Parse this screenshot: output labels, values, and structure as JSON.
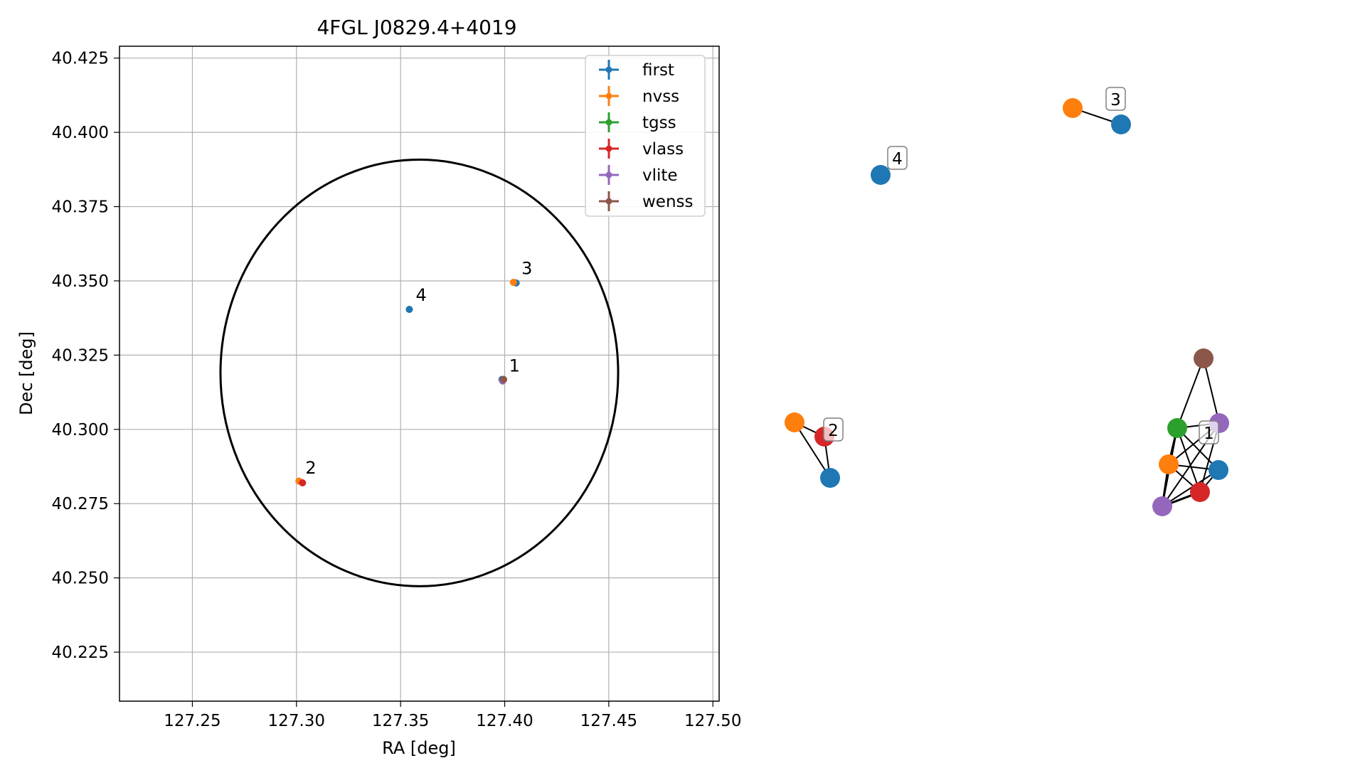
{
  "chart_data": [
    {
      "type": "scatter",
      "title": "4FGL J0829.4+4019",
      "xlabel": "RA [deg]",
      "ylabel": "Dec [deg]",
      "xlim": [
        127.215,
        127.503
      ],
      "ylim": [
        40.2085,
        40.429
      ],
      "grid": true,
      "legend_position": "top-right",
      "x_ticks": [
        127.25,
        127.3,
        127.35,
        127.4,
        127.45,
        127.5
      ],
      "x_tick_labels": [
        "127.25",
        "127.30",
        "127.35",
        "127.40",
        "127.45",
        "127.50"
      ],
      "y_ticks": [
        40.225,
        40.25,
        40.275,
        40.3,
        40.325,
        40.35,
        40.375,
        40.4,
        40.425
      ],
      "y_tick_labels": [
        "40.225",
        "40.250",
        "40.275",
        "40.300",
        "40.325",
        "40.350",
        "40.375",
        "40.400",
        "40.425"
      ],
      "ellipse": {
        "center": [
          127.359,
          40.319
        ],
        "ra_radius": 0.0955,
        "dec_radius": 0.0718
      },
      "series": [
        {
          "name": "first",
          "color": "#1f77b4",
          "points": [
            [
              127.4055,
              40.3493
            ],
            [
              127.3542,
              40.3404
            ],
            [
              127.3987,
              40.3168
            ]
          ]
        },
        {
          "name": "nvss",
          "color": "#ff7f0e",
          "points": [
            [
              127.4042,
              40.3495
            ],
            [
              127.3012,
              40.2826
            ],
            [
              127.399,
              40.3165
            ]
          ]
        },
        {
          "name": "tgss",
          "color": "#2ca02c",
          "points": [
            [
              127.399,
              40.3166
            ]
          ]
        },
        {
          "name": "vlass",
          "color": "#d62728",
          "points": [
            [
              127.3029,
              40.282
            ],
            [
              127.3991,
              40.3165
            ]
          ]
        },
        {
          "name": "vlite",
          "color": "#9467bd",
          "points": [
            [
              127.399,
              40.3163
            ]
          ]
        },
        {
          "name": "wenss",
          "color": "#8c564b",
          "points": [
            [
              127.3995,
              40.3168
            ]
          ]
        }
      ],
      "annotations": [
        {
          "label": "1",
          "x": 127.399,
          "y": 40.3166
        },
        {
          "label": "2",
          "x": 127.3012,
          "y": 40.2822
        },
        {
          "label": "3",
          "x": 127.405,
          "y": 40.3494
        },
        {
          "label": "4",
          "x": 127.3542,
          "y": 40.3404
        }
      ]
    },
    {
      "type": "network",
      "group_labels": [
        "1",
        "2",
        "3",
        "4"
      ],
      "node_colors": {
        "first": "#1f77b4",
        "nvss": "#ff7f0e",
        "tgss": "#2ca02c",
        "vlass": "#d62728",
        "vlite": "#9467bd",
        "wenss": "#8c564b"
      }
    }
  ]
}
